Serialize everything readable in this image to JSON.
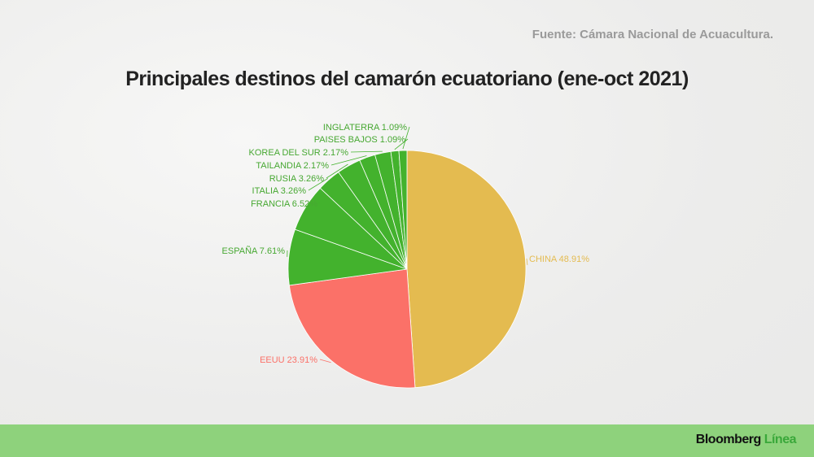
{
  "source": "Fuente: Cámara Nacional de Acuacultura.",
  "brand": {
    "name": "Bloomberg",
    "suffix": "Línea"
  },
  "chart_data": {
    "type": "pie",
    "title": "Principales destinos del camarón ecuatoriano (ene-oct 2021)",
    "start": "top",
    "direction": "clockwise",
    "slices": [
      {
        "label": "CHINA",
        "value": 48.91,
        "display": "CHINA 48.91%",
        "color": "#e4bb50"
      },
      {
        "label": "EEUU",
        "value": 23.91,
        "display": "EEUU 23.91%",
        "color": "#fb7168"
      },
      {
        "label": "ESPAÑA",
        "value": 7.61,
        "display": "ESPAÑA 7.61%",
        "color": "#43b22d"
      },
      {
        "label": "FRANCIA",
        "value": 6.52,
        "display": "FRANCIA 6.52%",
        "color": "#43b22d"
      },
      {
        "label": "ITALIA",
        "value": 3.26,
        "display": "ITALIA 3.26%",
        "color": "#43b22d"
      },
      {
        "label": "RUSIA",
        "value": 3.26,
        "display": "RUSIA 3.26%",
        "color": "#43b22d"
      },
      {
        "label": "TAILANDIA",
        "value": 2.17,
        "display": "TAILANDIA 2.17%",
        "color": "#43b22d"
      },
      {
        "label": "KOREA DEL SUR",
        "value": 2.17,
        "display": "KOREA DEL SUR 2.17%",
        "color": "#43b22d"
      },
      {
        "label": "PAISES BAJOS",
        "value": 1.09,
        "display": "PAISES BAJOS 1.09%",
        "color": "#43b22d"
      },
      {
        "label": "INGLATERRA",
        "value": 1.09,
        "display": "INGLATERRA 1.09%",
        "color": "#43b22d"
      }
    ]
  }
}
